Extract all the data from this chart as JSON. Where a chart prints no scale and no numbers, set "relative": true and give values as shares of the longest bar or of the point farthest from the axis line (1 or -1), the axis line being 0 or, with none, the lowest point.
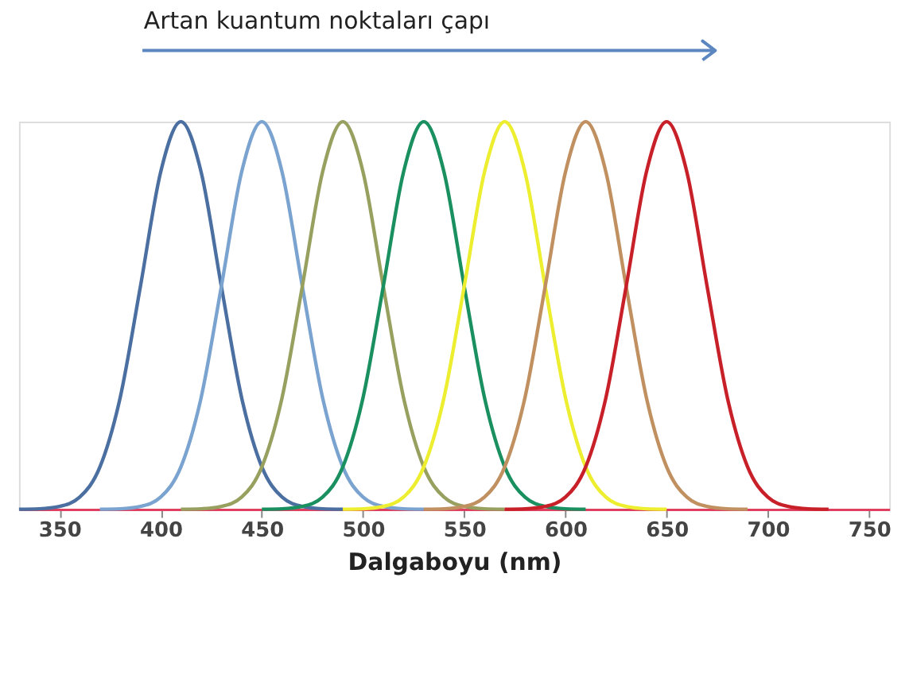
{
  "chart_data": {
    "type": "line",
    "title": "Artan kuantum noktaları çapı",
    "xlabel": "Dalgaboyu (nm)",
    "relative": true,
    "tick_labels": "x",
    "grid": false,
    "marker": "none",
    "line_style": "solid",
    "xlim": [
      330,
      760
    ],
    "xticks": [
      350,
      400,
      450,
      500,
      550,
      600,
      650,
      700,
      750
    ],
    "series": [
      {
        "color": "#4a6fa0",
        "x": [
          330,
          340,
          350,
          360,
          370,
          380,
          390,
          400,
          410,
          420,
          430,
          440,
          450,
          460,
          470,
          480,
          490
        ],
        "values": [
          0,
          0.001,
          0.007,
          0.031,
          0.109,
          0.288,
          0.575,
          0.87,
          1,
          0.87,
          0.575,
          0.288,
          0.109,
          0.031,
          0.007,
          0.001,
          0
        ]
      },
      {
        "color": "#7aa3d0",
        "x": [
          370,
          380,
          390,
          400,
          410,
          420,
          430,
          440,
          450,
          460,
          470,
          480,
          490,
          500,
          510,
          520,
          530
        ],
        "values": [
          0,
          0.001,
          0.007,
          0.031,
          0.109,
          0.288,
          0.575,
          0.87,
          1,
          0.87,
          0.575,
          0.288,
          0.109,
          0.031,
          0.007,
          0.001,
          0
        ]
      },
      {
        "color": "#98a060",
        "x": [
          410,
          420,
          430,
          440,
          450,
          460,
          470,
          480,
          490,
          500,
          510,
          520,
          530,
          540,
          550,
          560,
          570
        ],
        "values": [
          0,
          0.001,
          0.007,
          0.031,
          0.109,
          0.288,
          0.575,
          0.87,
          1,
          0.87,
          0.575,
          0.288,
          0.109,
          0.031,
          0.007,
          0.001,
          0
        ]
      },
      {
        "color": "#1a9060",
        "x": [
          450,
          460,
          470,
          480,
          490,
          500,
          510,
          520,
          530,
          540,
          550,
          560,
          570,
          580,
          590,
          600,
          610
        ],
        "values": [
          0,
          0.001,
          0.007,
          0.031,
          0.109,
          0.288,
          0.575,
          0.87,
          1,
          0.87,
          0.575,
          0.288,
          0.109,
          0.031,
          0.007,
          0.001,
          0
        ]
      },
      {
        "color": "#eeee30",
        "x": [
          490,
          500,
          510,
          520,
          530,
          540,
          550,
          560,
          570,
          580,
          590,
          600,
          610,
          620,
          630,
          640,
          650
        ],
        "values": [
          0,
          0.001,
          0.007,
          0.031,
          0.109,
          0.288,
          0.575,
          0.87,
          1,
          0.87,
          0.575,
          0.288,
          0.109,
          0.031,
          0.007,
          0.001,
          0
        ]
      },
      {
        "color": "#c09060",
        "x": [
          530,
          540,
          550,
          560,
          570,
          580,
          590,
          600,
          610,
          620,
          630,
          640,
          650,
          660,
          670,
          680,
          690
        ],
        "values": [
          0,
          0.001,
          0.007,
          0.031,
          0.109,
          0.288,
          0.575,
          0.87,
          1,
          0.87,
          0.575,
          0.288,
          0.109,
          0.031,
          0.007,
          0.001,
          0
        ]
      },
      {
        "color": "#c82028",
        "x": [
          570,
          580,
          590,
          600,
          610,
          620,
          630,
          640,
          650,
          660,
          670,
          680,
          690,
          700,
          710,
          720,
          730
        ],
        "values": [
          0,
          0.001,
          0.007,
          0.031,
          0.109,
          0.288,
          0.575,
          0.87,
          1,
          0.87,
          0.575,
          0.288,
          0.109,
          0.031,
          0.007,
          0.001,
          0
        ]
      }
    ]
  }
}
